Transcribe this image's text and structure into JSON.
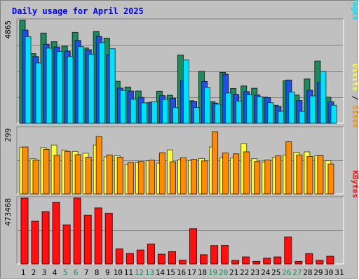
{
  "chart_data": {
    "type": "bar",
    "title": "Daily usage for April 2025",
    "x": [
      "1",
      "2",
      "3",
      "4",
      "5",
      "6",
      "7",
      "8",
      "9",
      "10",
      "11",
      "12",
      "13",
      "14",
      "15",
      "16",
      "17",
      "18",
      "19",
      "20",
      "21",
      "22",
      "23",
      "24",
      "25",
      "26",
      "27",
      "28",
      "29",
      "30",
      "31"
    ],
    "weekend_days": [
      "5",
      "6",
      "12",
      "13",
      "19",
      "20",
      "26",
      "27"
    ],
    "colors": {
      "hits": "#1f8a5e",
      "files": "#2050e0",
      "pages": "#00e0ff",
      "visits": "#ffff40",
      "sites": "#ff8c00",
      "kbytes": "#ff1010",
      "weekday_label": "#000000",
      "weekend_label": "#1f8a5e"
    },
    "panels": [
      {
        "name": "hits-files-pages",
        "ymax": 4865,
        "ymax_label": "4865",
        "side_label": [
          {
            "text": "Pages",
            "color": "#00e0ff"
          },
          {
            "text": " / ",
            "color": "#000000"
          },
          {
            "text": "Files",
            "color": "#2050e0"
          },
          {
            "text": " / ",
            "color": "#000000"
          },
          {
            "text": "Hits",
            "color": "#1f8a5e"
          }
        ],
        "series": [
          {
            "name": "Hits",
            "color": "#1f8a5e",
            "values": [
              4865,
              3290,
              4260,
              3850,
              3640,
              4290,
              3560,
              4340,
              4020,
              1980,
              1710,
              1520,
              970,
              1510,
              1320,
              3220,
              1060,
              2450,
              1020,
              2400,
              1640,
              1760,
              1650,
              1230,
              850,
              2010,
              1330,
              2090,
              2940,
              1230,
              0
            ]
          },
          {
            "name": "Files",
            "color": "#2050e0",
            "values": [
              4400,
              3150,
              3730,
              3600,
              3410,
              3910,
              3470,
              4100,
              3250,
              1660,
              1520,
              1220,
              990,
              1300,
              1180,
              2010,
              1030,
              1970,
              950,
              2310,
              1360,
              1490,
              1330,
              1210,
              790,
              2040,
              1070,
              1560,
              1940,
              1010,
              0
            ]
          },
          {
            "name": "Pages",
            "color": "#00e0ff",
            "values": [
              4090,
              2850,
              3550,
              3390,
              3150,
              3620,
              3260,
              3810,
              3520,
              1550,
              1130,
              960,
              1010,
              1120,
              740,
              2990,
              740,
              1690,
              900,
              1430,
              1050,
              1340,
              1250,
              970,
              560,
              1470,
              560,
              1290,
              2440,
              850,
              0
            ]
          }
        ]
      },
      {
        "name": "visits-sites",
        "ymax": 299,
        "ymax_label": "299",
        "side_label": [
          {
            "text": "Sites",
            "color": "#ff8c00"
          },
          {
            "text": " / ",
            "color": "#000000"
          },
          {
            "text": "Visits",
            "color": "#ffff40"
          }
        ],
        "series": [
          {
            "name": "Visits",
            "color": "#ffff40",
            "values": [
              212,
              160,
              210,
              222,
              199,
              193,
              185,
              222,
              168,
              173,
              132,
              142,
              151,
              140,
              200,
              155,
              152,
              161,
              213,
              164,
              163,
              229,
              160,
              145,
              166,
              176,
              189,
              191,
              174,
              151,
              0
            ]
          },
          {
            "name": "Sites",
            "color": "#ff8c00",
            "values": [
              213,
              153,
              202,
              176,
              193,
              178,
              167,
              261,
              177,
              167,
              142,
              147,
              153,
              187,
              146,
              164,
              157,
              150,
              283,
              186,
              182,
              191,
              147,
              154,
              173,
              237,
              177,
              170,
              174,
              136,
              0
            ]
          }
        ]
      },
      {
        "name": "kbytes",
        "ymax": 473468,
        "ymax_label": "473468",
        "side_label": [
          {
            "text": "KBytes",
            "color": "#ff1010"
          }
        ],
        "series": [
          {
            "name": "KBytes",
            "color": "#ff1010",
            "values": [
              473468,
              307000,
              375000,
              442000,
              281000,
              474000,
              351000,
              403000,
              365000,
              108000,
              75000,
              100000,
              143000,
              70000,
              88000,
              27000,
              253000,
              66000,
              132000,
              133000,
              25000,
              50000,
              18000,
              41000,
              50000,
              194000,
              18000,
              74000,
              26000,
              55000,
              0
            ]
          }
        ]
      }
    ]
  }
}
